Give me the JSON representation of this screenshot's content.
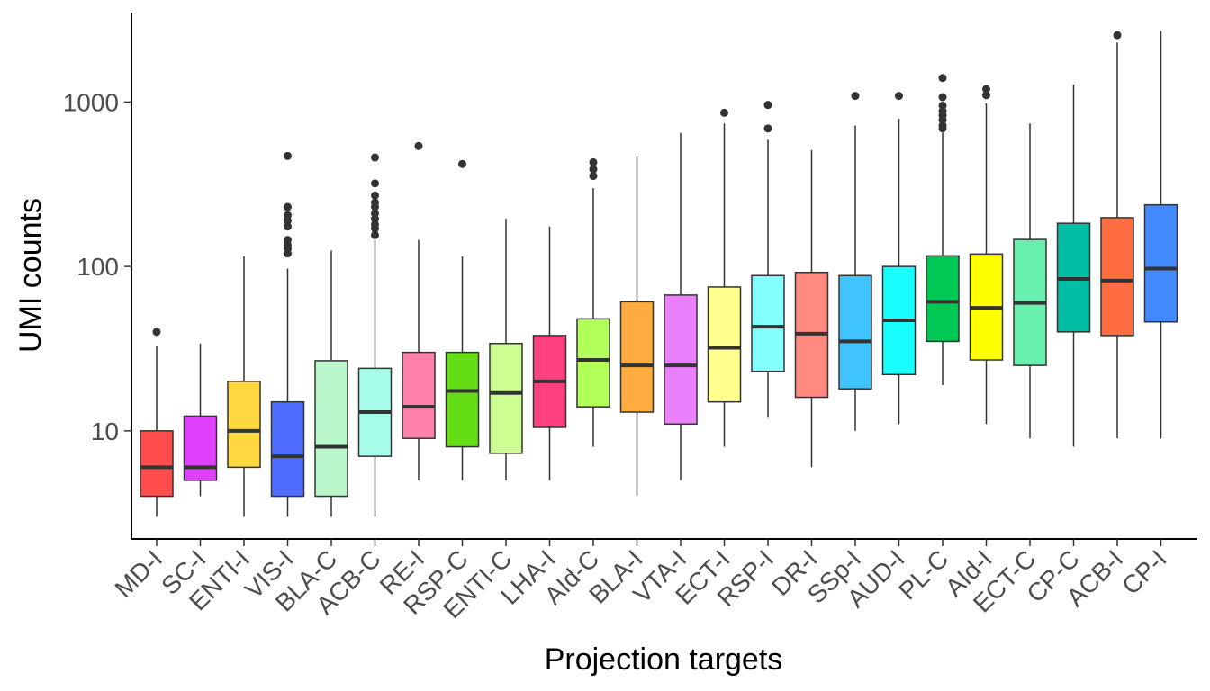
{
  "chart_data": {
    "type": "boxplot",
    "xlabel": "Projection targets",
    "ylabel": "UMI counts",
    "yscale": "log10",
    "ylim": [
      2.2,
      3500
    ],
    "yticks": [
      {
        "value": 10,
        "label": "10"
      },
      {
        "value": 100,
        "label": "100"
      },
      {
        "value": 1000,
        "label": "1000"
      }
    ],
    "grid": false,
    "legend": "none",
    "boxes": [
      {
        "category": "MD-I",
        "color": "#FF4D4D",
        "whisker_low": 3,
        "q1": 4,
        "median": 6,
        "q3": 10,
        "whisker_high": 33,
        "outliers": [
          40
        ]
      },
      {
        "category": "SC-I",
        "color": "#E040FB",
        "whisker_low": 4,
        "q1": 5,
        "median": 6,
        "q3": 12.3,
        "whisker_high": 34,
        "outliers": []
      },
      {
        "category": "ENTI-I",
        "color": "#FFD740",
        "whisker_low": 3,
        "q1": 6,
        "median": 10,
        "q3": 20,
        "whisker_high": 115,
        "outliers": []
      },
      {
        "category": "VIS-I",
        "color": "#4F6EFF",
        "whisker_low": 3,
        "q1": 4,
        "median": 7,
        "q3": 15,
        "whisker_high": 97,
        "outliers": [
          120,
          128,
          135,
          145,
          175,
          190,
          205,
          230,
          470
        ]
      },
      {
        "category": "BLA-C",
        "color": "#B9F6CA",
        "whisker_low": 3,
        "q1": 4,
        "median": 8,
        "q3": 26.7,
        "whisker_high": 125,
        "outliers": []
      },
      {
        "category": "ACB-C",
        "color": "#A7FFEB",
        "whisker_low": 3,
        "q1": 7,
        "median": 13,
        "q3": 24,
        "whisker_high": 145,
        "outliers": [
          155,
          170,
          180,
          195,
          210,
          230,
          245,
          270,
          320,
          460
        ]
      },
      {
        "category": "RE-I",
        "color": "#FF80AB",
        "whisker_low": 5,
        "q1": 9,
        "median": 14,
        "q3": 30,
        "whisker_high": 145,
        "outliers": [
          540
        ]
      },
      {
        "category": "RSP-C",
        "color": "#64DD17",
        "whisker_low": 5,
        "q1": 8,
        "median": 17.5,
        "q3": 30,
        "whisker_high": 115,
        "outliers": [
          420
        ]
      },
      {
        "category": "ENTI-C",
        "color": "#CCFF90",
        "whisker_low": 5,
        "q1": 7.3,
        "median": 17,
        "q3": 34,
        "whisker_high": 195,
        "outliers": []
      },
      {
        "category": "LHA-I",
        "color": "#FF4081",
        "whisker_low": 5,
        "q1": 10.5,
        "median": 20,
        "q3": 38,
        "whisker_high": 175,
        "outliers": []
      },
      {
        "category": "AId-C",
        "color": "#B2FF59",
        "whisker_low": 8,
        "q1": 14,
        "median": 27,
        "q3": 48,
        "whisker_high": 300,
        "outliers": [
          355,
          390,
          430
        ]
      },
      {
        "category": "BLA-I",
        "color": "#FFAB40",
        "whisker_low": 4,
        "q1": 13,
        "median": 25,
        "q3": 61,
        "whisker_high": 470,
        "outliers": []
      },
      {
        "category": "VTA-I",
        "color": "#EA80FC",
        "whisker_low": 5,
        "q1": 11,
        "median": 25,
        "q3": 67,
        "whisker_high": 650,
        "outliers": []
      },
      {
        "category": "ECT-I",
        "color": "#FFFF8D",
        "whisker_low": 8,
        "q1": 15,
        "median": 32,
        "q3": 75,
        "whisker_high": 740,
        "outliers": [
          860
        ]
      },
      {
        "category": "RSP-I",
        "color": "#84FFFF",
        "whisker_low": 12,
        "q1": 23,
        "median": 43,
        "q3": 88,
        "whisker_high": 590,
        "outliers": [
          690,
          960
        ]
      },
      {
        "category": "DR-I",
        "color": "#FF8A80",
        "whisker_low": 6,
        "q1": 16,
        "median": 39,
        "q3": 92,
        "whisker_high": 510,
        "outliers": []
      },
      {
        "category": "SSp-I",
        "color": "#40C4FF",
        "whisker_low": 10,
        "q1": 18,
        "median": 35,
        "q3": 88,
        "whisker_high": 720,
        "outliers": [
          1090
        ]
      },
      {
        "category": "AUD-I",
        "color": "#18FFFF",
        "whisker_low": 11,
        "q1": 22,
        "median": 47,
        "q3": 100,
        "whisker_high": 790,
        "outliers": [
          1090
        ]
      },
      {
        "category": "PL-C",
        "color": "#00C853",
        "whisker_low": 19,
        "q1": 35,
        "median": 61,
        "q3": 116,
        "whisker_high": 650,
        "outliers": [
          690,
          720,
          780,
          830,
          880,
          950,
          1070,
          1400
        ]
      },
      {
        "category": "AId-I",
        "color": "#FFFF00",
        "whisker_low": 11,
        "q1": 27,
        "median": 56,
        "q3": 119,
        "whisker_high": 980,
        "outliers": [
          1100,
          1200
        ]
      },
      {
        "category": "ECT-C",
        "color": "#69F0AE",
        "whisker_low": 9,
        "q1": 25,
        "median": 60,
        "q3": 146,
        "whisker_high": 740,
        "outliers": []
      },
      {
        "category": "CP-C",
        "color": "#00BFA5",
        "whisker_low": 8,
        "q1": 40,
        "median": 84,
        "q3": 183,
        "whisker_high": 1280,
        "outliers": []
      },
      {
        "category": "ACB-I",
        "color": "#FF6E40",
        "whisker_low": 9,
        "q1": 38,
        "median": 82,
        "q3": 198,
        "whisker_high": 2300,
        "outliers": [
          2550
        ]
      },
      {
        "category": "CP-I",
        "color": "#448AFF",
        "whisker_low": 9,
        "q1": 46,
        "median": 97,
        "q3": 237,
        "whisker_high": 2700,
        "outliers": []
      }
    ]
  }
}
